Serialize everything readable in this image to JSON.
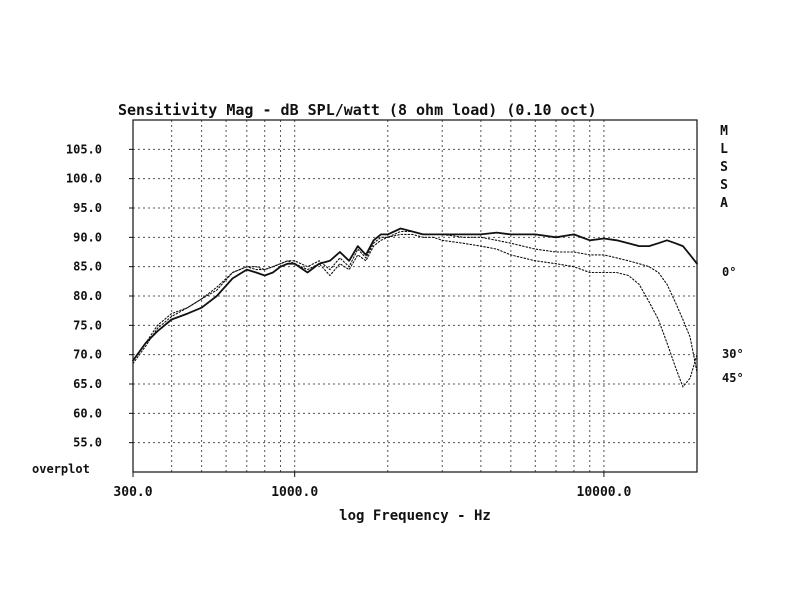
{
  "chart_data": {
    "type": "line",
    "title": "Sensitivity Mag - dB SPL/watt (8 ohm load) (0.10 oct)",
    "xlabel": "log Frequency - Hz",
    "ylabel": "",
    "x_scale": "log",
    "xlim": [
      300,
      20000
    ],
    "ylim": [
      50,
      110
    ],
    "y_ticks": [
      "105.0",
      "100.0",
      "95.0",
      "90.0",
      "85.0",
      "80.0",
      "75.0",
      "70.0",
      "65.0",
      "60.0",
      "55.0"
    ],
    "y_tick_values": [
      105,
      100,
      95,
      90,
      85,
      80,
      75,
      70,
      65,
      60,
      55
    ],
    "x_ticks": [
      "300.0",
      "1000.0",
      "10000.0"
    ],
    "x_tick_values": [
      300,
      1000,
      10000
    ],
    "bottom_left_label": "overplot",
    "side_label": [
      "M",
      "L",
      "S",
      "S",
      "A"
    ],
    "grid": true,
    "series": [
      {
        "name": "0°",
        "style": "solid",
        "x": [
          300,
          330,
          360,
          400,
          450,
          500,
          560,
          630,
          700,
          750,
          800,
          850,
          900,
          950,
          1000,
          1100,
          1200,
          1300,
          1400,
          1500,
          1600,
          1700,
          1800,
          1900,
          2000,
          2200,
          2400,
          2600,
          2800,
          3000,
          3500,
          4000,
          4500,
          5000,
          6000,
          7000,
          8000,
          9000,
          10000,
          11000,
          12000,
          13000,
          14000,
          15000,
          16000,
          17000,
          18000,
          19000,
          20000
        ],
        "y": [
          69,
          72,
          74,
          76,
          77,
          78,
          80,
          83,
          84.5,
          84,
          83.5,
          84,
          85,
          85.5,
          85.5,
          84,
          85.5,
          86,
          87.5,
          86,
          88.5,
          87,
          89.5,
          90.5,
          90.5,
          91.5,
          91,
          90.5,
          90.5,
          90.5,
          90.5,
          90.5,
          90.8,
          90.5,
          90.5,
          90,
          90.5,
          89.5,
          89.8,
          89.5,
          89,
          88.5,
          88.5,
          89,
          89.5,
          89,
          88.5,
          87,
          85.5
        ]
      },
      {
        "name": "30°",
        "style": "dotted",
        "x": [
          300,
          330,
          360,
          400,
          450,
          500,
          560,
          630,
          700,
          750,
          800,
          850,
          900,
          950,
          1000,
          1100,
          1200,
          1300,
          1400,
          1500,
          1600,
          1700,
          1800,
          1900,
          2000,
          2200,
          2400,
          2600,
          2800,
          3000,
          3500,
          4000,
          4500,
          5000,
          6000,
          7000,
          8000,
          9000,
          10000,
          11000,
          12000,
          13000,
          14000,
          15000,
          16000,
          17000,
          18000,
          19000,
          20000
        ],
        "y": [
          69,
          72,
          75,
          77,
          78,
          79.5,
          81,
          84,
          85,
          84.5,
          84.5,
          85,
          85.5,
          86,
          86,
          85,
          86,
          84.5,
          86.5,
          85,
          88,
          86.5,
          89,
          90,
          90,
          91,
          91,
          90.5,
          90.5,
          90.5,
          90,
          90,
          89.5,
          89,
          88,
          87.5,
          87.5,
          87,
          87,
          86.5,
          86,
          85.5,
          85,
          84,
          82,
          79,
          76,
          73,
          67
        ]
      },
      {
        "name": "45°",
        "style": "dotted",
        "x": [
          300,
          330,
          360,
          400,
          450,
          500,
          560,
          630,
          700,
          750,
          800,
          850,
          900,
          950,
          1000,
          1100,
          1200,
          1300,
          1400,
          1500,
          1600,
          1700,
          1800,
          1900,
          2000,
          2200,
          2400,
          2600,
          2800,
          3000,
          3500,
          4000,
          4500,
          5000,
          6000,
          7000,
          8000,
          9000,
          10000,
          11000,
          12000,
          13000,
          14000,
          15000,
          16000,
          17000,
          18000,
          19000,
          20000
        ],
        "y": [
          68.5,
          71.5,
          74.5,
          76.5,
          78,
          79.5,
          81.5,
          84,
          85,
          85,
          84.5,
          85,
          85.5,
          86,
          85.5,
          84.5,
          85.5,
          83.5,
          85.5,
          84.5,
          87,
          86,
          88.5,
          89.5,
          90,
          90.5,
          90.5,
          90,
          90,
          89.5,
          89,
          88.5,
          88,
          87,
          86,
          85.5,
          85,
          84,
          84,
          84,
          83.5,
          82,
          79,
          76,
          72,
          68,
          64.5,
          66,
          70
        ]
      }
    ],
    "annotations": [
      {
        "label": "0°",
        "series": "0°"
      },
      {
        "label": "30°",
        "series": "30°"
      },
      {
        "label": "45°",
        "series": "45°"
      }
    ]
  }
}
